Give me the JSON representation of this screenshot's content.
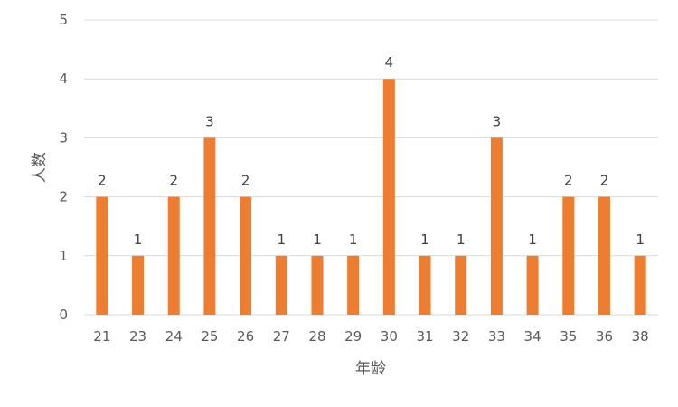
{
  "chart_data": {
    "type": "bar",
    "title": "",
    "xlabel": "年龄",
    "ylabel": "人数",
    "categories": [
      "21",
      "23",
      "24",
      "25",
      "26",
      "27",
      "28",
      "29",
      "30",
      "31",
      "32",
      "33",
      "34",
      "35",
      "36",
      "38"
    ],
    "values": [
      2,
      1,
      2,
      3,
      2,
      1,
      1,
      1,
      4,
      1,
      1,
      3,
      1,
      2,
      2,
      1
    ],
    "ylim": [
      0,
      5
    ],
    "yticks": [
      0,
      1,
      2,
      3,
      4,
      5
    ],
    "grid": true,
    "legend": "none",
    "data_labels": true,
    "colors": {
      "bar": "#ED7D31",
      "grid": "#D9D9D9",
      "text": "#595959"
    }
  }
}
